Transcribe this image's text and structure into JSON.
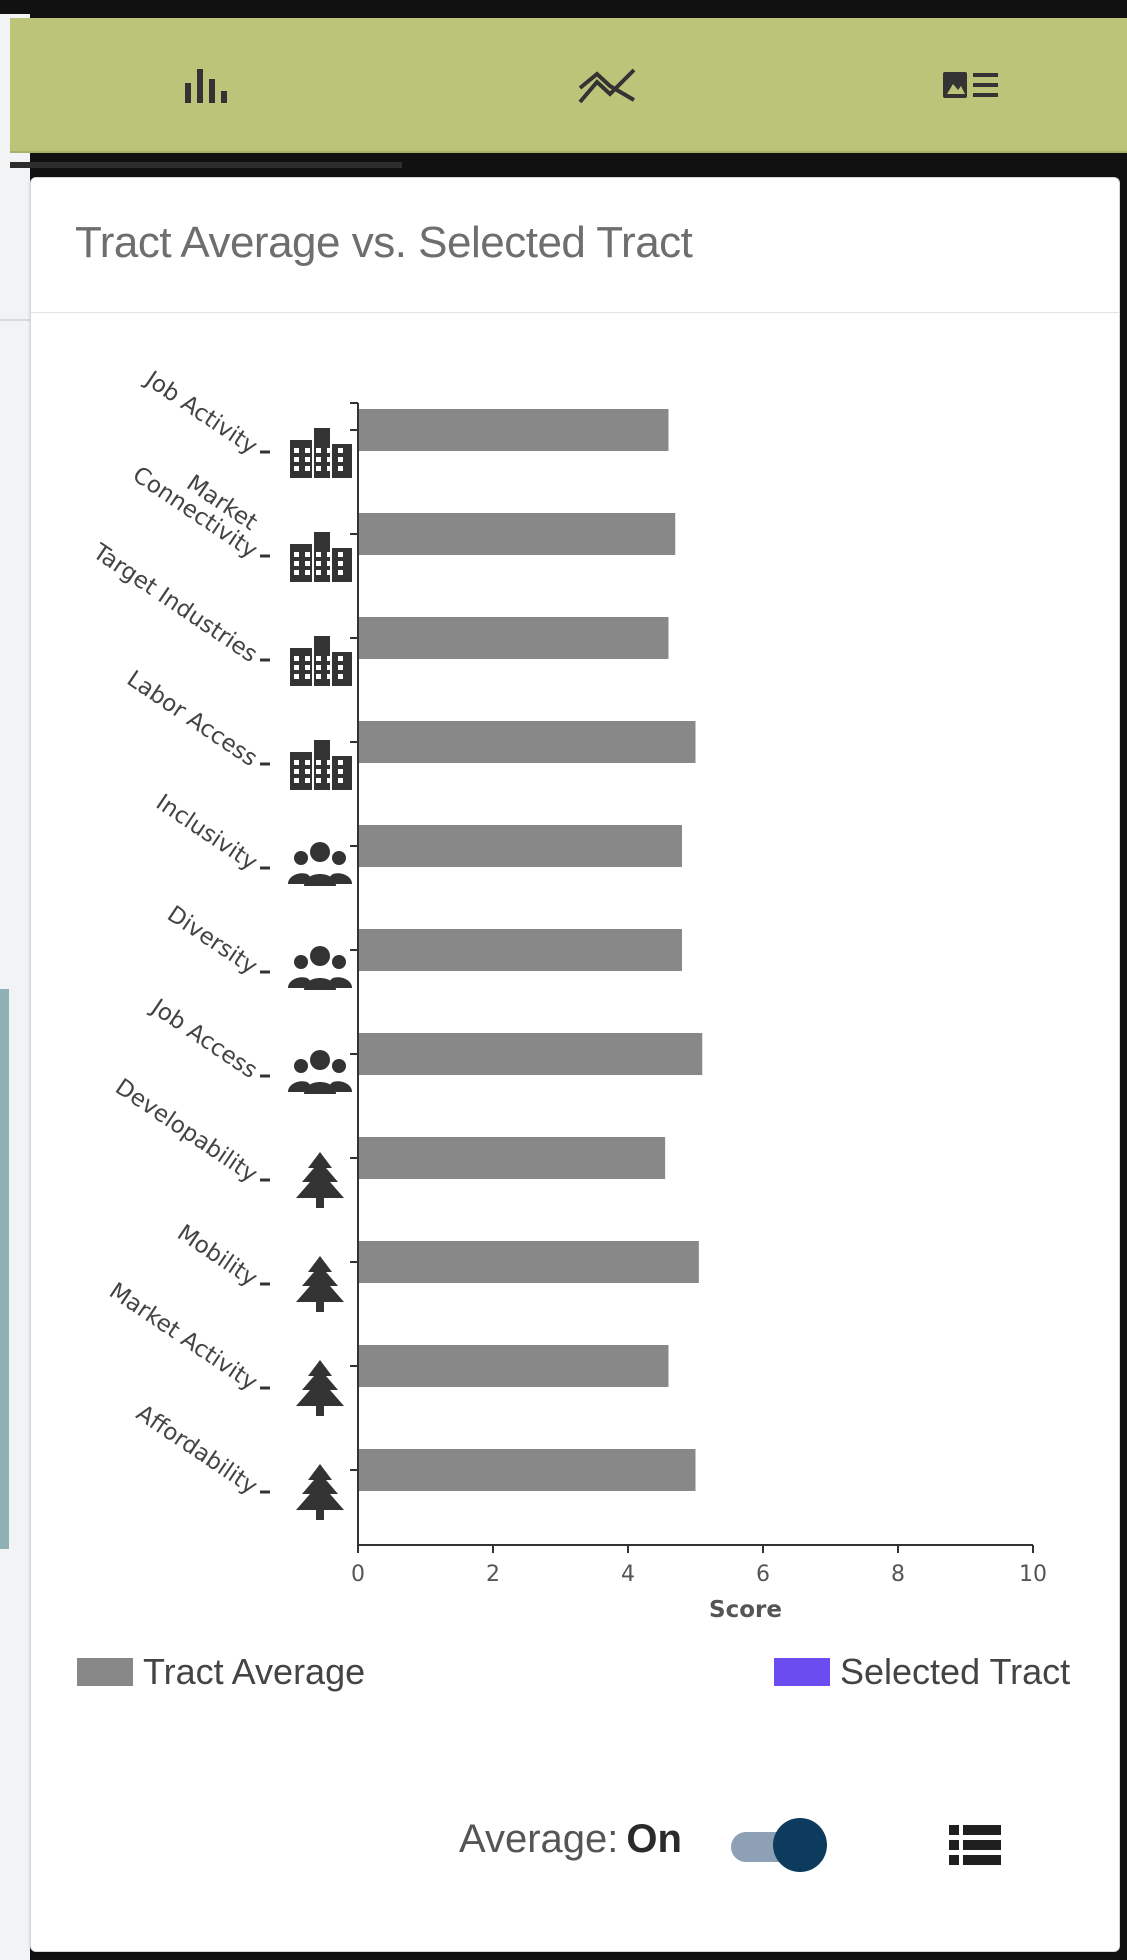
{
  "tabs": [
    {
      "icon": "bar-chart-icon"
    },
    {
      "icon": "trend-icon"
    },
    {
      "icon": "image-list-icon"
    }
  ],
  "card": {
    "title": "Tract Average vs. Selected Tract"
  },
  "chart_data": {
    "type": "bar",
    "orientation": "horizontal",
    "categories": [
      "Job Activity",
      "Market Connectivity",
      "Target Industries",
      "Labor Access",
      "Inclusivity",
      "Diversity",
      "Job Access",
      "Developability",
      "Mobility",
      "Market Activity",
      "Affordability"
    ],
    "category_icons": [
      "factory-icon",
      "factory-icon",
      "factory-icon",
      "factory-icon",
      "people-icon",
      "people-icon",
      "people-icon",
      "tree-icon",
      "tree-icon",
      "tree-icon",
      "tree-icon"
    ],
    "series": [
      {
        "name": "Tract Average",
        "color": "#888888",
        "values": [
          4.6,
          4.7,
          4.6,
          5.0,
          4.8,
          4.8,
          5.1,
          4.55,
          5.05,
          4.6,
          5.0
        ]
      }
    ],
    "xlabel": "Score",
    "xlim": [
      0,
      10
    ],
    "xticks": [
      "0",
      "2",
      "4",
      "6",
      "8",
      "10"
    ]
  },
  "legend": [
    {
      "label": "Tract Average",
      "color": "#888888"
    },
    {
      "label": "Selected Tract",
      "color": "#6a4cf0"
    }
  ],
  "toggle": {
    "label": "Average:",
    "state": "On"
  },
  "list_button": {
    "icon": "list-icon"
  }
}
